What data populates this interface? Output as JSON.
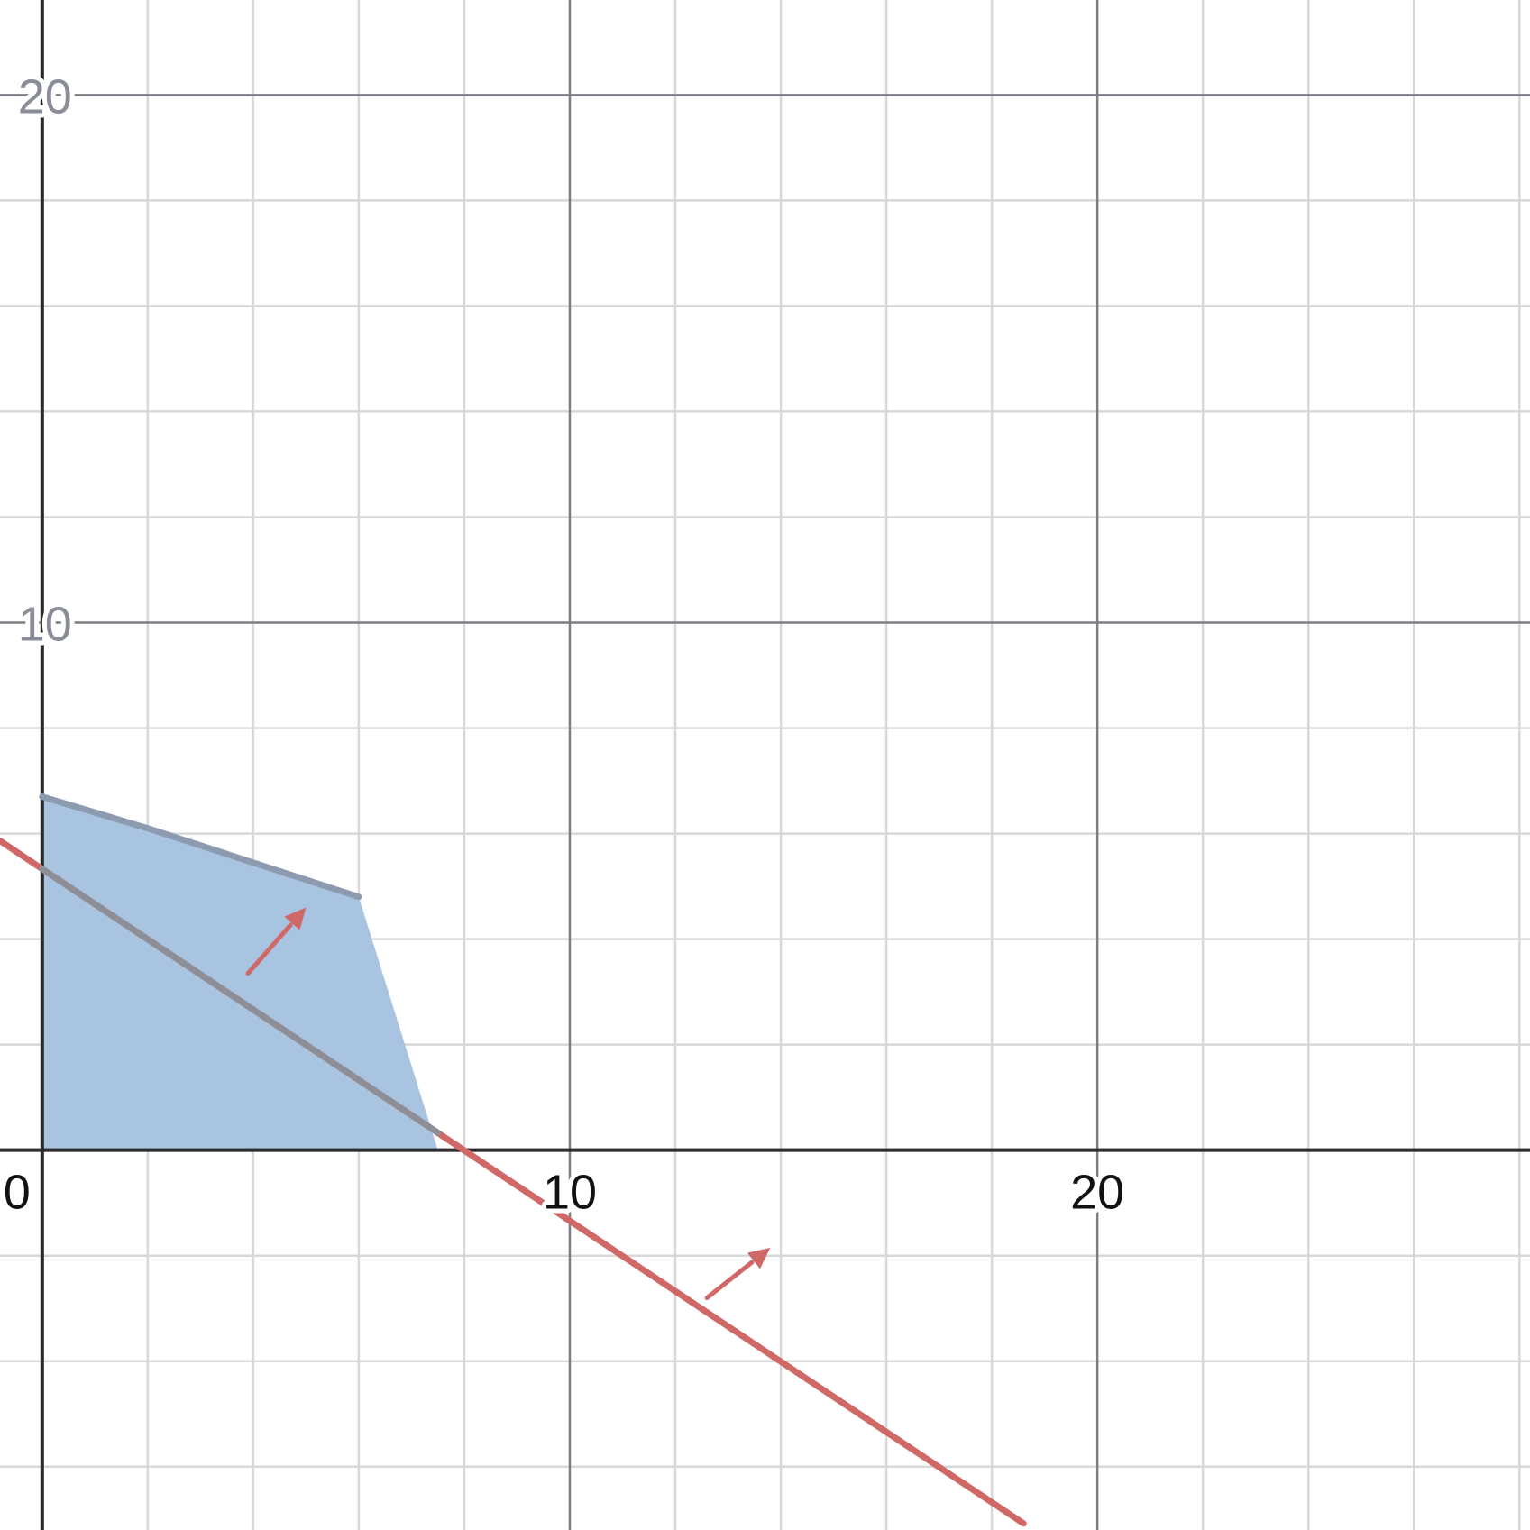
{
  "chart_data": {
    "type": "line",
    "title": "",
    "xlabel": "",
    "ylabel": "",
    "xlim": [
      -0.8,
      28.2
    ],
    "ylim": [
      -7.2,
      21.8
    ],
    "grid": true,
    "minor_grid_step": 2,
    "major_grid_step": 10,
    "x_tick_labels": [
      {
        "value": 0,
        "label": "0"
      },
      {
        "value": 10,
        "label": "10"
      },
      {
        "value": 20,
        "label": "20"
      }
    ],
    "y_tick_labels": [
      {
        "value": 10,
        "label": "10"
      },
      {
        "value": 20,
        "label": "20"
      }
    ],
    "feasible_region": {
      "color": "#a9c4e0",
      "vertices": [
        [
          0,
          0
        ],
        [
          0,
          6.7
        ],
        [
          2,
          6.1
        ],
        [
          6,
          4.8
        ],
        [
          7.5,
          0
        ]
      ]
    },
    "series": [
      {
        "color": "#8d9bb0",
        "x": [
          0,
          2,
          6
        ],
        "y": [
          6.7,
          6.1,
          4.8
        ]
      },
      {
        "color": "#d06868",
        "slope": -0.667,
        "intercept": 5.33,
        "x_range": [
          -0.8,
          18.6
        ]
      },
      {
        "color": "#8e8e96",
        "x": [
          0,
          7.5
        ],
        "y": [
          5.33,
          0.33
        ]
      }
    ],
    "arrows": [
      {
        "color": "#d06868",
        "from": [
          3.9,
          3.35
        ],
        "to": [
          5.0,
          4.6
        ]
      },
      {
        "color": "#d06868",
        "from": [
          12.6,
          -2.8
        ],
        "to": [
          13.8,
          -1.85
        ]
      }
    ],
    "colors": {
      "grid_minor": "#d8d8d8",
      "grid_major": "#7d7d85",
      "axis": "#2a2a2a"
    }
  }
}
